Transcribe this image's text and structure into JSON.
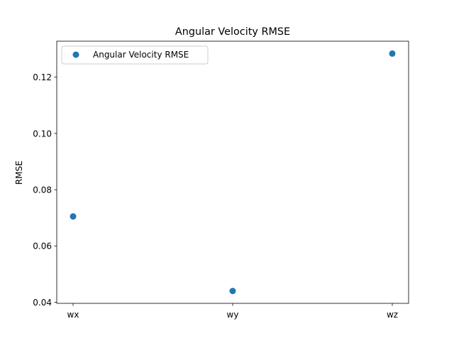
{
  "chart_data": {
    "type": "scatter",
    "title": "Angular Velocity RMSE",
    "xlabel": "",
    "ylabel": "RMSE",
    "categories": [
      "wx",
      "wy",
      "wz"
    ],
    "series": [
      {
        "name": "Angular Velocity RMSE",
        "values": [
          0.0705,
          0.044,
          0.1284
        ],
        "color": "#1f77b4"
      }
    ],
    "ylim": [
      0.0396,
      0.1328
    ],
    "yticks": [
      0.04,
      0.06,
      0.08,
      0.1,
      0.12
    ],
    "ytick_labels": [
      "0.04",
      "0.06",
      "0.08",
      "0.10",
      "0.12"
    ],
    "grid": false,
    "legend_position": "upper-left"
  }
}
